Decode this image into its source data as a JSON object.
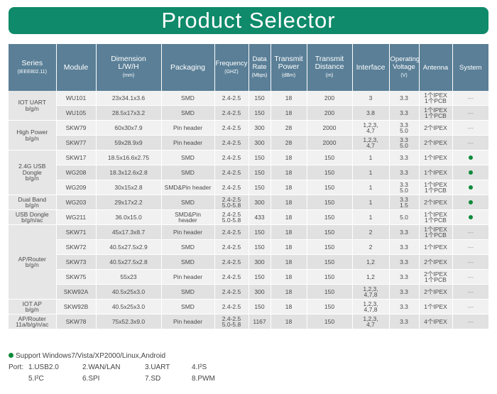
{
  "title": "Product Selector",
  "headers": {
    "series": "Series",
    "series_sub": "(IEEE802.11)",
    "module": "Module",
    "dimension": "Dimension",
    "dimension_2": "L/W/H",
    "dimension_sub": "(mm)",
    "packaging": "Packaging",
    "frequency": "Frequency",
    "frequency_sub": "(GHZ)",
    "datarate": "Data",
    "datarate_2": "Rate",
    "datarate_sub": "(Mbps)",
    "power": "Transmit",
    "power_2": "Power",
    "power_sub": "(dBm)",
    "distance": "Transmit",
    "distance_2": "Distance",
    "distance_sub": "(m)",
    "interface": "Interface",
    "voltage": "Operating",
    "voltage_2": "Voltage",
    "voltage_sub": "(V)",
    "antenna": "Antenna",
    "system": "System"
  },
  "series": {
    "iot_uart": "IOT UART",
    "iot_uart_2": "b/g/n",
    "high_power": "High Power",
    "high_power_2": "b/g/n",
    "usb_dongle": "2.4G USB",
    "usb_dongle_2": "Dongle",
    "usb_dongle_3": "b/g/n",
    "dual_band": "Dual Band",
    "dual_band_2": "b/g/n",
    "usb_dongle_ac": "USB Dongle",
    "usb_dongle_ac_2": "b/g/n/ac",
    "ap_router": "AP/Router",
    "ap_router_2": "b/g/n",
    "iot_ap": "IOT AP",
    "iot_ap_2": "b/g/n",
    "ap_router_ac": "AP/Router",
    "ap_router_ac_2": "11a/b/g/n/ac"
  },
  "rows": [
    {
      "module": "WU101",
      "dim": "23x34.1x3.6",
      "pack": "SMD",
      "pack2": "",
      "freq": "2.4-2.5",
      "freq2": "",
      "rate": "150",
      "power": "18",
      "dist": "200",
      "iface": "3",
      "iface2": "",
      "volt": "3.3",
      "volt2": "",
      "ant": "1个IPEX",
      "ant2": "1个PCB",
      "sys": "---"
    },
    {
      "module": "WU105",
      "dim": "28.5x17x3.2",
      "pack": "SMD",
      "pack2": "",
      "freq": "2.4-2.5",
      "freq2": "",
      "rate": "150",
      "power": "18",
      "dist": "200",
      "iface": "3.8",
      "iface2": "",
      "volt": "3.3",
      "volt2": "",
      "ant": "1个IPEX",
      "ant2": "1个PCB",
      "sys": "---"
    },
    {
      "module": "SKW79",
      "dim": "60x30x7.9",
      "pack": "Pin header",
      "pack2": "",
      "freq": "2.4-2.5",
      "freq2": "",
      "rate": "300",
      "power": "28",
      "dist": "2000",
      "iface": "1,2,3,",
      "iface2": "4,7",
      "volt": "3.3",
      "volt2": "5.0",
      "ant": "2个IPEX",
      "ant2": "",
      "sys": "---"
    },
    {
      "module": "SKW77",
      "dim": "59x28.9x9",
      "pack": "Pin header",
      "pack2": "",
      "freq": "2.4-2.5",
      "freq2": "",
      "rate": "300",
      "power": "28",
      "dist": "2000",
      "iface": "1,2,3,",
      "iface2": "4,7",
      "volt": "3.3",
      "volt2": "5.0",
      "ant": "2个IPEX",
      "ant2": "",
      "sys": "---"
    },
    {
      "module": "SKW17",
      "dim": "18.5x16.6x2.75",
      "pack": "SMD",
      "pack2": "",
      "freq": "2.4-2.5",
      "freq2": "",
      "rate": "150",
      "power": "18",
      "dist": "150",
      "iface": "1",
      "iface2": "",
      "volt": "3.3",
      "volt2": "",
      "ant": "1个IPEX",
      "ant2": "",
      "sys": "dot"
    },
    {
      "module": "WG208",
      "dim": "18.3x12.6x2.8",
      "pack": "SMD",
      "pack2": "",
      "freq": "2.4-2.5",
      "freq2": "",
      "rate": "150",
      "power": "18",
      "dist": "150",
      "iface": "1",
      "iface2": "",
      "volt": "3.3",
      "volt2": "",
      "ant": "1个IPEX",
      "ant2": "",
      "sys": "dot"
    },
    {
      "module": "WG209",
      "dim": "30x15x2.8",
      "pack": "SMD&Pin header",
      "pack2": "",
      "freq": "2.4-2.5",
      "freq2": "",
      "rate": "150",
      "power": "18",
      "dist": "150",
      "iface": "1",
      "iface2": "",
      "volt": "3.3",
      "volt2": "5.0",
      "ant": "1个IPEX",
      "ant2": "1个PCB",
      "sys": "dot"
    },
    {
      "module": "WG203",
      "dim": "29x17x2.2",
      "pack": "SMD",
      "pack2": "",
      "freq": "2.4-2.5",
      "freq2": "5.0-5.8",
      "rate": "300",
      "power": "18",
      "dist": "150",
      "iface": "1",
      "iface2": "",
      "volt": "3.3",
      "volt2": "1.5",
      "ant": "2个IPEX",
      "ant2": "",
      "sys": "dot"
    },
    {
      "module": "WG211",
      "dim": "36.0x15.0",
      "pack": "SMD&Pin",
      "pack2": "header",
      "freq": "2.4-2.5",
      "freq2": "5.0-5.8",
      "rate": "433",
      "power": "18",
      "dist": "150",
      "iface": "1",
      "iface2": "",
      "volt": "5.0",
      "volt2": "",
      "ant": "1个IPEX",
      "ant2": "1个PCB",
      "sys": "dot"
    },
    {
      "module": "SKW71",
      "dim": "45x17.3x8.7",
      "pack": "Pin header",
      "pack2": "",
      "freq": "2.4-2.5",
      "freq2": "",
      "rate": "150",
      "power": "18",
      "dist": "150",
      "iface": "2",
      "iface2": "",
      "volt": "3.3",
      "volt2": "",
      "ant": "1个IPEX",
      "ant2": "1个PCB",
      "sys": "---"
    },
    {
      "module": "SKW72",
      "dim": "40.5x27.5x2.9",
      "pack": "SMD",
      "pack2": "",
      "freq": "2.4-2.5",
      "freq2": "",
      "rate": "150",
      "power": "18",
      "dist": "150",
      "iface": "2",
      "iface2": "",
      "volt": "3.3",
      "volt2": "",
      "ant": "1个IPEX",
      "ant2": "",
      "sys": "---"
    },
    {
      "module": "SKW73",
      "dim": "40.5x27.5x2.8",
      "pack": "SMD",
      "pack2": "",
      "freq": "2.4-2.5",
      "freq2": "",
      "rate": "300",
      "power": "18",
      "dist": "150",
      "iface": "1,2",
      "iface2": "",
      "volt": "3.3",
      "volt2": "",
      "ant": "2个IPEX",
      "ant2": "",
      "sys": "---"
    },
    {
      "module": "SKW75",
      "dim": "55x23",
      "pack": "Pin header",
      "pack2": "",
      "freq": "2.4-2.5",
      "freq2": "",
      "rate": "150",
      "power": "18",
      "dist": "150",
      "iface": "1,2",
      "iface2": "",
      "volt": "3.3",
      "volt2": "",
      "ant": "2个IPEX",
      "ant2": "1个PCB",
      "sys": "---"
    },
    {
      "module": "SKW92A",
      "dim": "40.5x25x3.0",
      "pack": "SMD",
      "pack2": "",
      "freq": "2.4-2.5",
      "freq2": "",
      "rate": "300",
      "power": "18",
      "dist": "150",
      "iface": "1,2,3,",
      "iface2": "4,7,8",
      "volt": "3.3",
      "volt2": "",
      "ant": "2个IPEX",
      "ant2": "",
      "sys": "---"
    },
    {
      "module": "SKW92B",
      "dim": "40.5x25x3.0",
      "pack": "SMD",
      "pack2": "",
      "freq": "2.4-2.5",
      "freq2": "",
      "rate": "150",
      "power": "18",
      "dist": "150",
      "iface": "1,2,3,",
      "iface2": "4,7,8",
      "volt": "3.3",
      "volt2": "",
      "ant": "1个IPEX",
      "ant2": "",
      "sys": "---"
    },
    {
      "module": "SKW78",
      "dim": "75x52.3x9.0",
      "pack": "Pin header",
      "pack2": "",
      "freq": "2.4-2.5",
      "freq2": "5.0-5.8",
      "rate": "1167",
      "power": "18",
      "dist": "150",
      "iface": "1,2,3,",
      "iface2": "4,7",
      "volt": "3.3",
      "volt2": "",
      "ant": "4个IPEX",
      "ant2": "",
      "sys": "---"
    }
  ],
  "footer": {
    "support": "Support  Windows7/Vista/XP2000/Linux,Android",
    "port_label": "Port:",
    "ports": [
      "1.USB2.0",
      "2.WAN/LAN",
      "3.UART",
      "4.I²S",
      "5.I²C",
      "6.SPI",
      "7.SD",
      "8.PWM"
    ]
  },
  "colors": {
    "banner": "#0f8a6a",
    "header": "#5a7f97",
    "dot": "#0f8a3a"
  }
}
